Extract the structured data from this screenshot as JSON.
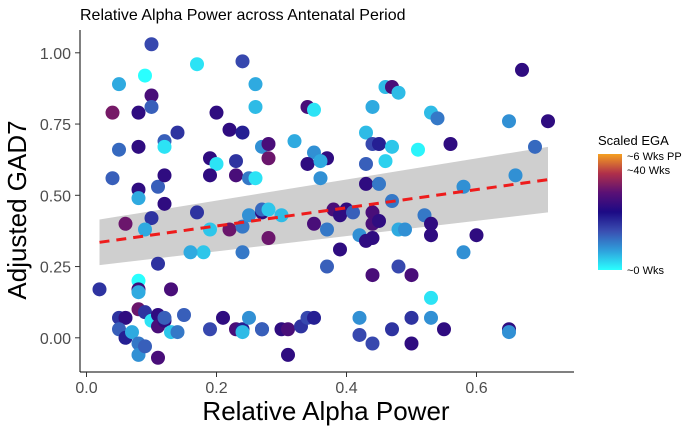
{
  "chart_data": {
    "type": "scatter",
    "title": "Relative Alpha Power across Antenatal Period",
    "xlabel": "Relative Alpha Power",
    "ylabel": "Adjusted GAD7",
    "xlim": [
      -0.01,
      0.75
    ],
    "ylim": [
      -0.12,
      1.08
    ],
    "x_ticks": [
      0.0,
      0.2,
      0.4,
      0.6
    ],
    "x_tick_labels": [
      "0.0",
      "0.2",
      "0.4",
      "0.6"
    ],
    "y_ticks": [
      0.0,
      0.25,
      0.5,
      0.75,
      1.0
    ],
    "y_tick_labels": [
      "0.00",
      "0.25",
      "0.50",
      "0.75",
      "1.00"
    ],
    "grid": false,
    "trend": {
      "type": "linear",
      "style": "dashed",
      "color": "#ee1c1c",
      "x": [
        0.02,
        0.71
      ],
      "y": [
        0.335,
        0.555
      ],
      "band_lower": [
        0.255,
        0.44
      ],
      "band_upper": [
        0.415,
        0.67
      ],
      "band_color": "#cfcfcf"
    },
    "color_scale": {
      "title": "Scaled EGA",
      "labels": [
        "~6 Wks PP",
        "~40 Wks",
        "~0 Wks"
      ],
      "placement": "right",
      "colors": [
        "#2affff",
        "#2fa0dc",
        "#3a4fb2",
        "#1c0a85",
        "#5a1075",
        "#b0304a",
        "#f5a020"
      ]
    },
    "points": [
      {
        "x": 0.1,
        "y": 1.03,
        "c": 0.35
      },
      {
        "x": 0.09,
        "y": 0.92,
        "c": 0.0
      },
      {
        "x": 0.05,
        "y": 0.89,
        "c": 0.15
      },
      {
        "x": 0.1,
        "y": 0.85,
        "c": 0.62
      },
      {
        "x": 0.1,
        "y": 0.81,
        "c": 0.3
      },
      {
        "x": 0.04,
        "y": 0.79,
        "c": 0.72
      },
      {
        "x": 0.08,
        "y": 0.79,
        "c": 0.55
      },
      {
        "x": 0.17,
        "y": 0.96,
        "c": 0.05
      },
      {
        "x": 0.24,
        "y": 0.97,
        "c": 0.35
      },
      {
        "x": 0.26,
        "y": 0.89,
        "c": 0.15
      },
      {
        "x": 0.67,
        "y": 0.94,
        "c": 0.55
      },
      {
        "x": 0.46,
        "y": 0.88,
        "c": 0.12
      },
      {
        "x": 0.47,
        "y": 0.88,
        "c": 0.62
      },
      {
        "x": 0.48,
        "y": 0.86,
        "c": 0.12
      },
      {
        "x": 0.44,
        "y": 0.81,
        "c": 0.15
      },
      {
        "x": 0.34,
        "y": 0.81,
        "c": 0.62
      },
      {
        "x": 0.35,
        "y": 0.8,
        "c": 0.05
      },
      {
        "x": 0.2,
        "y": 0.79,
        "c": 0.55
      },
      {
        "x": 0.26,
        "y": 0.81,
        "c": 0.12
      },
      {
        "x": 0.53,
        "y": 0.79,
        "c": 0.12
      },
      {
        "x": 0.54,
        "y": 0.77,
        "c": 0.25
      },
      {
        "x": 0.65,
        "y": 0.76,
        "c": 0.2
      },
      {
        "x": 0.71,
        "y": 0.76,
        "c": 0.55
      },
      {
        "x": 0.14,
        "y": 0.72,
        "c": 0.4
      },
      {
        "x": 0.12,
        "y": 0.69,
        "c": 0.3
      },
      {
        "x": 0.12,
        "y": 0.67,
        "c": 0.05
      },
      {
        "x": 0.05,
        "y": 0.66,
        "c": 0.28
      },
      {
        "x": 0.08,
        "y": 0.67,
        "c": 0.55
      },
      {
        "x": 0.22,
        "y": 0.73,
        "c": 0.55
      },
      {
        "x": 0.24,
        "y": 0.72,
        "c": 0.45
      },
      {
        "x": 0.27,
        "y": 0.67,
        "c": 0.2
      },
      {
        "x": 0.28,
        "y": 0.68,
        "c": 0.62
      },
      {
        "x": 0.32,
        "y": 0.69,
        "c": 0.15
      },
      {
        "x": 0.35,
        "y": 0.65,
        "c": 0.2
      },
      {
        "x": 0.37,
        "y": 0.63,
        "c": 0.55
      },
      {
        "x": 0.43,
        "y": 0.72,
        "c": 0.12
      },
      {
        "x": 0.44,
        "y": 0.68,
        "c": 0.35
      },
      {
        "x": 0.45,
        "y": 0.68,
        "c": 0.45
      },
      {
        "x": 0.47,
        "y": 0.67,
        "c": 0.1
      },
      {
        "x": 0.51,
        "y": 0.66,
        "c": 0.02
      },
      {
        "x": 0.56,
        "y": 0.68,
        "c": 0.55
      },
      {
        "x": 0.69,
        "y": 0.67,
        "c": 0.28
      },
      {
        "x": 0.46,
        "y": 0.62,
        "c": 0.08
      },
      {
        "x": 0.19,
        "y": 0.63,
        "c": 0.55
      },
      {
        "x": 0.2,
        "y": 0.61,
        "c": 0.05
      },
      {
        "x": 0.23,
        "y": 0.62,
        "c": 0.4
      },
      {
        "x": 0.28,
        "y": 0.63,
        "c": 0.7
      },
      {
        "x": 0.34,
        "y": 0.61,
        "c": 0.55
      },
      {
        "x": 0.36,
        "y": 0.62,
        "c": 0.15
      },
      {
        "x": 0.43,
        "y": 0.61,
        "c": 0.3
      },
      {
        "x": 0.04,
        "y": 0.56,
        "c": 0.3
      },
      {
        "x": 0.08,
        "y": 0.52,
        "c": 0.55
      },
      {
        "x": 0.11,
        "y": 0.53,
        "c": 0.3
      },
      {
        "x": 0.12,
        "y": 0.57,
        "c": 0.55
      },
      {
        "x": 0.19,
        "y": 0.57,
        "c": 0.55
      },
      {
        "x": 0.23,
        "y": 0.57,
        "c": 0.62
      },
      {
        "x": 0.25,
        "y": 0.56,
        "c": 0.25
      },
      {
        "x": 0.26,
        "y": 0.56,
        "c": 0.05
      },
      {
        "x": 0.36,
        "y": 0.56,
        "c": 0.2
      },
      {
        "x": 0.43,
        "y": 0.54,
        "c": 0.55
      },
      {
        "x": 0.45,
        "y": 0.54,
        "c": 0.25
      },
      {
        "x": 0.08,
        "y": 0.49,
        "c": 0.15
      },
      {
        "x": 0.1,
        "y": 0.42,
        "c": 0.4
      },
      {
        "x": 0.12,
        "y": 0.47,
        "c": 0.55
      },
      {
        "x": 0.09,
        "y": 0.38,
        "c": 0.15
      },
      {
        "x": 0.06,
        "y": 0.4,
        "c": 0.7
      },
      {
        "x": 0.17,
        "y": 0.44,
        "c": 0.4
      },
      {
        "x": 0.19,
        "y": 0.38,
        "c": 0.1
      },
      {
        "x": 0.22,
        "y": 0.38,
        "c": 0.7
      },
      {
        "x": 0.24,
        "y": 0.39,
        "c": 0.25
      },
      {
        "x": 0.25,
        "y": 0.43,
        "c": 0.2
      },
      {
        "x": 0.27,
        "y": 0.44,
        "c": 0.55
      },
      {
        "x": 0.27,
        "y": 0.45,
        "c": 0.28
      },
      {
        "x": 0.28,
        "y": 0.45,
        "c": 0.1
      },
      {
        "x": 0.28,
        "y": 0.35,
        "c": 0.7
      },
      {
        "x": 0.3,
        "y": 0.43,
        "c": 0.12
      },
      {
        "x": 0.35,
        "y": 0.4,
        "c": 0.62
      },
      {
        "x": 0.37,
        "y": 0.38,
        "c": 0.25
      },
      {
        "x": 0.38,
        "y": 0.45,
        "c": 0.62
      },
      {
        "x": 0.39,
        "y": 0.43,
        "c": 0.55
      },
      {
        "x": 0.4,
        "y": 0.45,
        "c": 0.55
      },
      {
        "x": 0.41,
        "y": 0.44,
        "c": 0.3
      },
      {
        "x": 0.44,
        "y": 0.44,
        "c": 0.62
      },
      {
        "x": 0.44,
        "y": 0.4,
        "c": 0.62
      },
      {
        "x": 0.45,
        "y": 0.41,
        "c": 0.55
      },
      {
        "x": 0.47,
        "y": 0.48,
        "c": 0.25
      },
      {
        "x": 0.48,
        "y": 0.38,
        "c": 0.15
      },
      {
        "x": 0.49,
        "y": 0.38,
        "c": 0.2
      },
      {
        "x": 0.52,
        "y": 0.43,
        "c": 0.25
      },
      {
        "x": 0.53,
        "y": 0.4,
        "c": 0.55
      },
      {
        "x": 0.53,
        "y": 0.36,
        "c": 0.55
      },
      {
        "x": 0.58,
        "y": 0.53,
        "c": 0.2
      },
      {
        "x": 0.6,
        "y": 0.36,
        "c": 0.55
      },
      {
        "x": 0.42,
        "y": 0.36,
        "c": 0.2
      },
      {
        "x": 0.43,
        "y": 0.34,
        "c": 0.55
      },
      {
        "x": 0.44,
        "y": 0.35,
        "c": 0.55
      },
      {
        "x": 0.39,
        "y": 0.31,
        "c": 0.55
      },
      {
        "x": 0.24,
        "y": 0.3,
        "c": 0.25
      },
      {
        "x": 0.18,
        "y": 0.3,
        "c": 0.1
      },
      {
        "x": 0.16,
        "y": 0.3,
        "c": 0.15
      },
      {
        "x": 0.11,
        "y": 0.26,
        "c": 0.4
      },
      {
        "x": 0.37,
        "y": 0.25,
        "c": 0.3
      },
      {
        "x": 0.44,
        "y": 0.22,
        "c": 0.62
      },
      {
        "x": 0.48,
        "y": 0.25,
        "c": 0.35
      },
      {
        "x": 0.5,
        "y": 0.22,
        "c": 0.62
      },
      {
        "x": 0.58,
        "y": 0.3,
        "c": 0.2
      },
      {
        "x": 0.02,
        "y": 0.17,
        "c": 0.4
      },
      {
        "x": 0.08,
        "y": 0.2,
        "c": 0.0
      },
      {
        "x": 0.08,
        "y": 0.17,
        "c": 0.6
      },
      {
        "x": 0.08,
        "y": 0.16,
        "c": 0.15
      },
      {
        "x": 0.13,
        "y": 0.17,
        "c": 0.62
      },
      {
        "x": 0.08,
        "y": 0.1,
        "c": 0.7
      },
      {
        "x": 0.09,
        "y": 0.09,
        "c": 0.4
      },
      {
        "x": 0.1,
        "y": 0.06,
        "c": 0.05
      },
      {
        "x": 0.11,
        "y": 0.08,
        "c": 0.55
      },
      {
        "x": 0.11,
        "y": 0.04,
        "c": 0.62
      },
      {
        "x": 0.12,
        "y": 0.06,
        "c": 0.55
      },
      {
        "x": 0.12,
        "y": 0.07,
        "c": 0.3
      },
      {
        "x": 0.13,
        "y": 0.02,
        "c": 0.1
      },
      {
        "x": 0.05,
        "y": 0.07,
        "c": 0.4
      },
      {
        "x": 0.06,
        "y": 0.07,
        "c": 0.55
      },
      {
        "x": 0.05,
        "y": 0.03,
        "c": 0.3
      },
      {
        "x": 0.06,
        "y": 0.0,
        "c": 0.45
      },
      {
        "x": 0.07,
        "y": 0.02,
        "c": 0.15
      },
      {
        "x": 0.08,
        "y": -0.02,
        "c": 0.25
      },
      {
        "x": 0.08,
        "y": -0.06,
        "c": 0.2
      },
      {
        "x": 0.09,
        "y": -0.03,
        "c": 0.3
      },
      {
        "x": 0.11,
        "y": -0.07,
        "c": 0.62
      },
      {
        "x": 0.15,
        "y": 0.08,
        "c": 0.3
      },
      {
        "x": 0.14,
        "y": 0.02,
        "c": 0.25
      },
      {
        "x": 0.19,
        "y": 0.03,
        "c": 0.35
      },
      {
        "x": 0.21,
        "y": 0.07,
        "c": 0.55
      },
      {
        "x": 0.23,
        "y": 0.03,
        "c": 0.62
      },
      {
        "x": 0.24,
        "y": 0.03,
        "c": 0.45
      },
      {
        "x": 0.24,
        "y": 0.02,
        "c": 0.12
      },
      {
        "x": 0.25,
        "y": 0.07,
        "c": 0.2
      },
      {
        "x": 0.27,
        "y": 0.03,
        "c": 0.4
      },
      {
        "x": 0.27,
        "y": 0.03,
        "c": 0.3
      },
      {
        "x": 0.3,
        "y": 0.03,
        "c": 0.55
      },
      {
        "x": 0.31,
        "y": 0.03,
        "c": 0.62
      },
      {
        "x": 0.31,
        "y": -0.06,
        "c": 0.55
      },
      {
        "x": 0.33,
        "y": 0.04,
        "c": 0.4
      },
      {
        "x": 0.34,
        "y": 0.07,
        "c": 0.35
      },
      {
        "x": 0.35,
        "y": 0.07,
        "c": 0.45
      },
      {
        "x": 0.42,
        "y": 0.07,
        "c": 0.2
      },
      {
        "x": 0.42,
        "y": 0.01,
        "c": 0.35
      },
      {
        "x": 0.44,
        "y": -0.02,
        "c": 0.35
      },
      {
        "x": 0.47,
        "y": 0.03,
        "c": 0.4
      },
      {
        "x": 0.5,
        "y": 0.07,
        "c": 0.4
      },
      {
        "x": 0.5,
        "y": -0.02,
        "c": 0.55
      },
      {
        "x": 0.53,
        "y": 0.07,
        "c": 0.2
      },
      {
        "x": 0.53,
        "y": 0.14,
        "c": 0.05
      },
      {
        "x": 0.55,
        "y": 0.03,
        "c": 0.55
      },
      {
        "x": 0.65,
        "y": 0.03,
        "c": 0.55
      },
      {
        "x": 0.65,
        "y": 0.02,
        "c": 0.2
      },
      {
        "x": 0.66,
        "y": 0.57,
        "c": 0.2
      }
    ]
  }
}
